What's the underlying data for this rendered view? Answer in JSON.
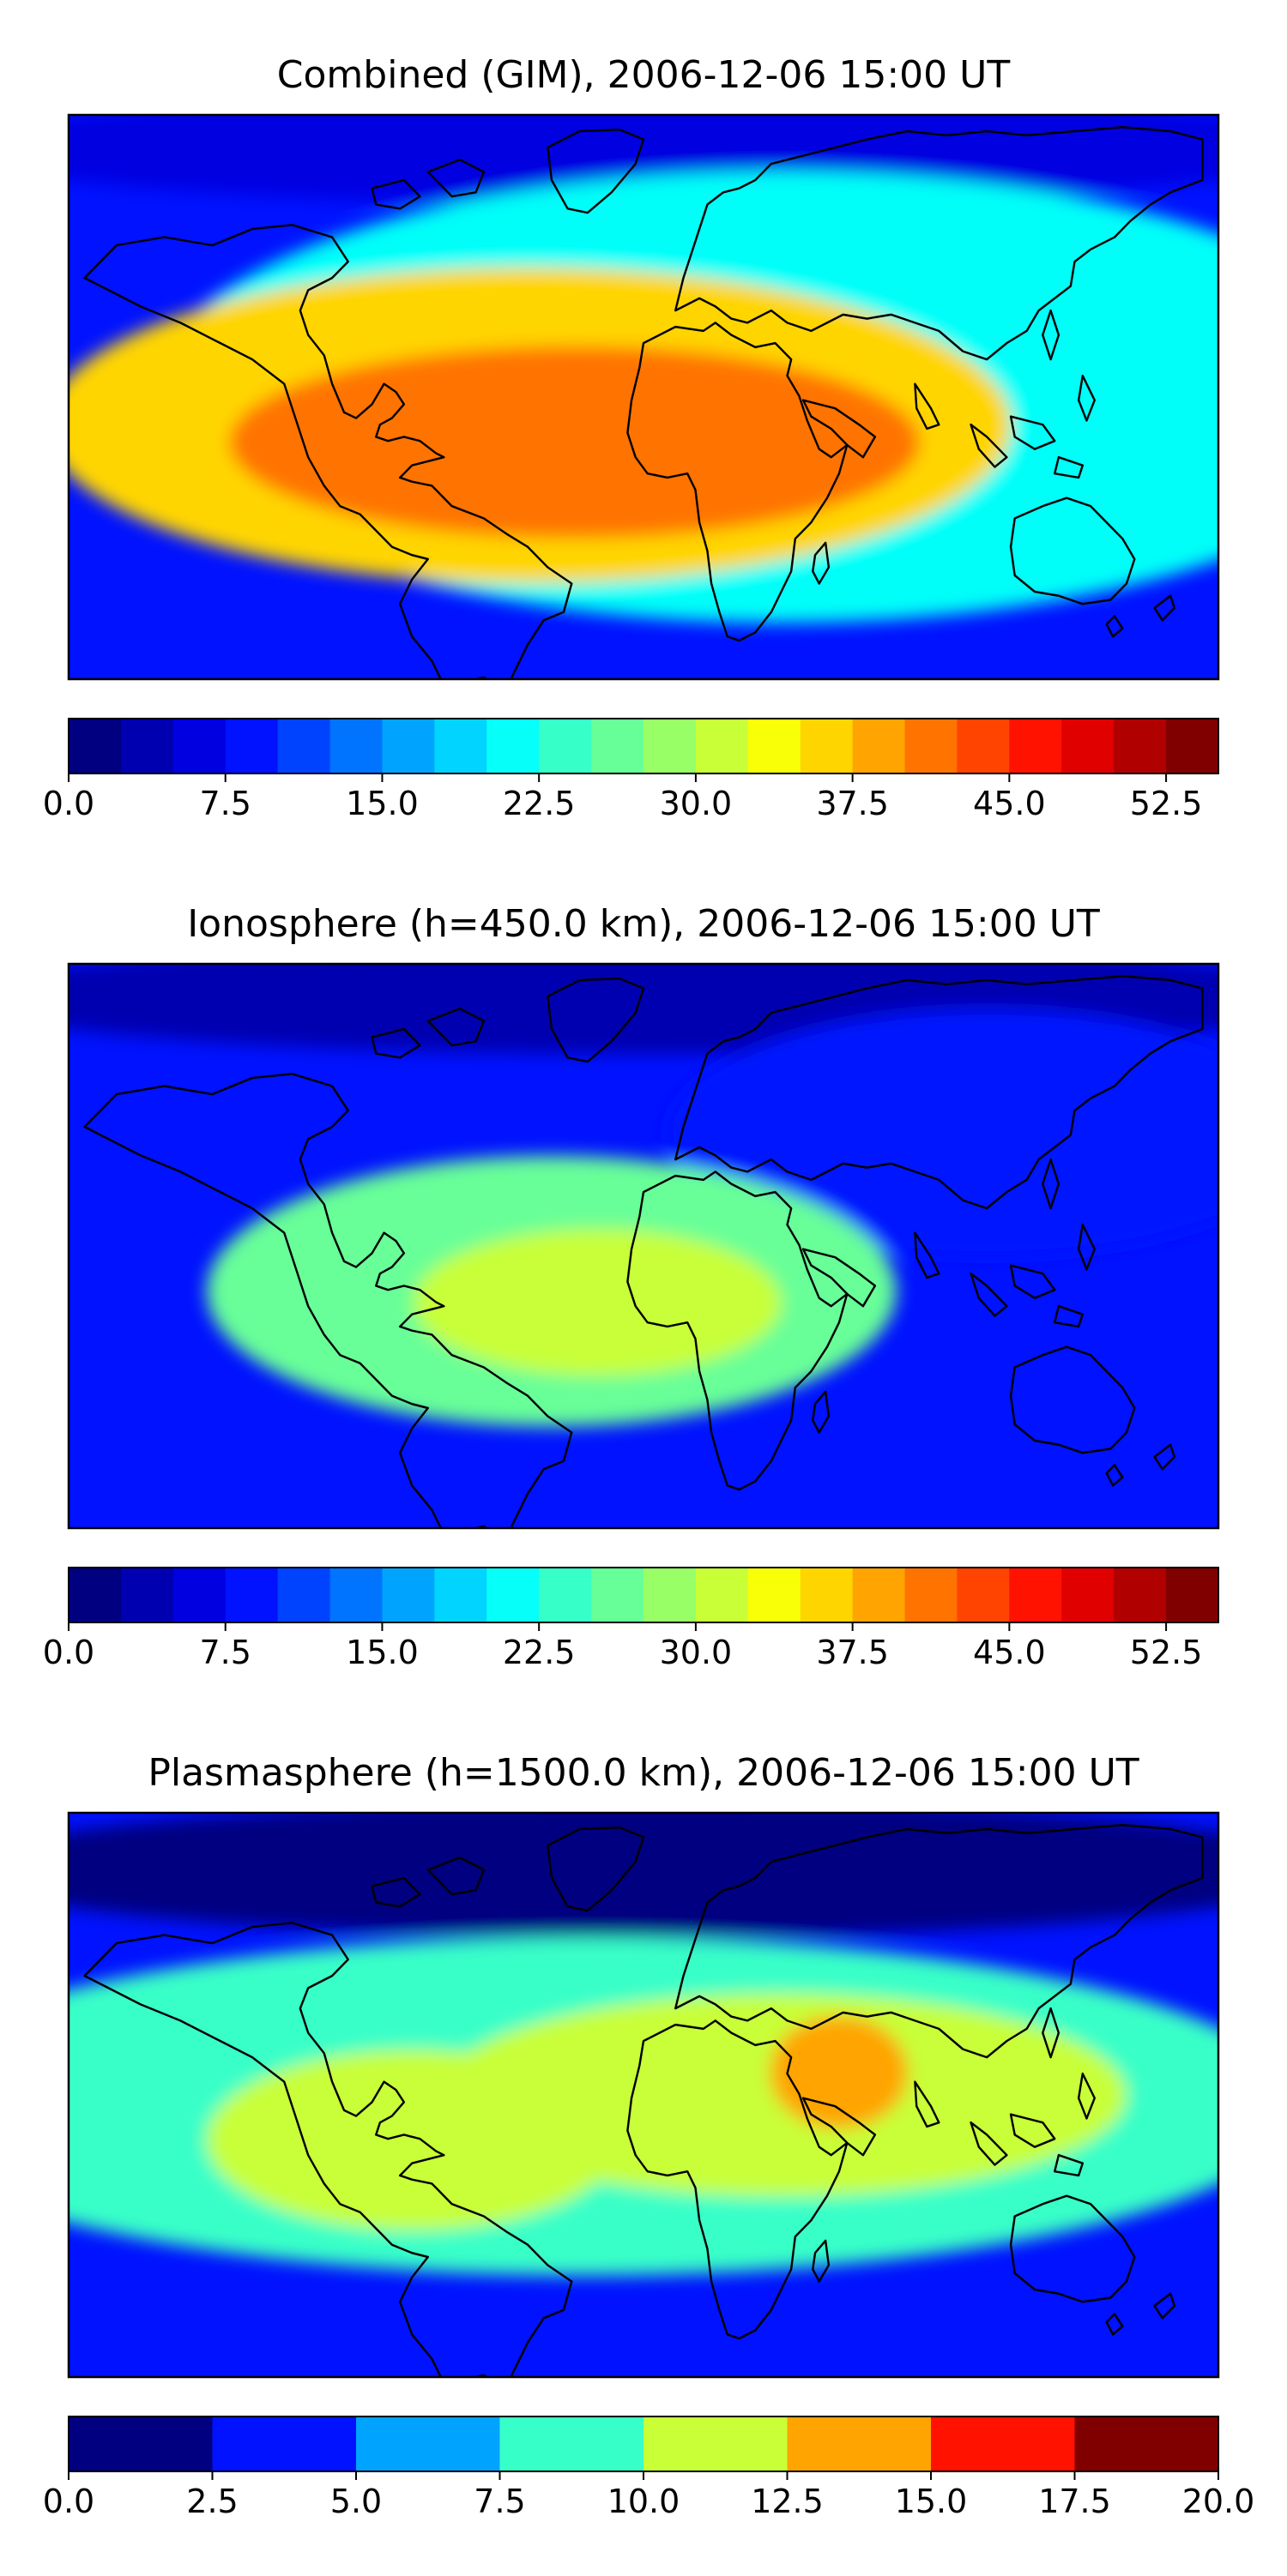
{
  "chart_data": [
    {
      "type": "heatmap",
      "title": "Combined (GIM), 2006-12-06 15:00 UT",
      "map": "world coastlines, equirectangular",
      "colormap": "jet",
      "value_range": [
        0,
        55
      ],
      "level_step": 2.5,
      "colorbar_ticks": [
        "0.0",
        "7.5",
        "15.0",
        "22.5",
        "30.0",
        "37.5",
        "45.0",
        "52.5"
      ],
      "features": [
        {
          "region": "South America / South Atlantic / southern Africa equatorial crest",
          "value": 42
        },
        {
          "region": "northern South America and central Africa",
          "value": 35
        },
        {
          "region": "equatorial Pacific and Indian Ocean",
          "value": 20
        },
        {
          "region": "polar regions",
          "value": 5
        }
      ]
    },
    {
      "type": "heatmap",
      "title": "Ionosphere  (h=450.0 km), 2006-12-06 15:00 UT",
      "map": "world coastlines, equirectangular",
      "colormap": "jet",
      "value_range": [
        0,
        55
      ],
      "level_step": 2.5,
      "colorbar_ticks": [
        "0.0",
        "7.5",
        "15.0",
        "22.5",
        "30.0",
        "37.5",
        "45.0",
        "52.5"
      ],
      "features": [
        {
          "region": "South Atlantic / southern Africa crest",
          "value": 31
        },
        {
          "region": "South America and Atlantic",
          "value": 25
        },
        {
          "region": "Pacific and Asia",
          "value": 8
        },
        {
          "region": "polar regions",
          "value": 3
        }
      ]
    },
    {
      "type": "heatmap",
      "title": "Plasmasphere (h=1500.0 km), 2006-12-06 15:00 UT",
      "map": "world coastlines, equirectangular",
      "colormap": "jet",
      "value_range": [
        0,
        20
      ],
      "level_step": 2.5,
      "colorbar_ticks": [
        "0.0",
        "2.5",
        "5.0",
        "7.5",
        "10.0",
        "12.5",
        "15.0",
        "17.5",
        "20.0"
      ],
      "features": [
        {
          "region": "Arabian Peninsula / Horn of Africa maximum",
          "value": 13.5
        },
        {
          "region": "Africa to Indonesia band",
          "value": 11
        },
        {
          "region": "South America",
          "value": 11
        },
        {
          "region": "equatorial band",
          "value": 8
        },
        {
          "region": "high latitudes",
          "value": 2
        }
      ]
    }
  ]
}
